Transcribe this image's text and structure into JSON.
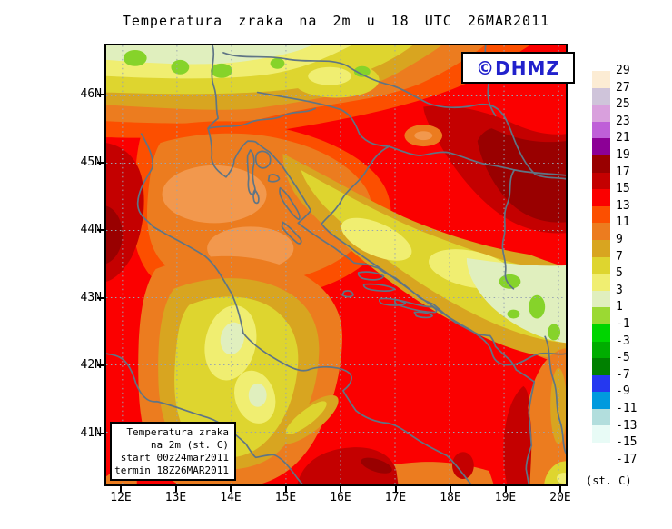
{
  "title": "Temperatura zraka na 2m u 18 UTC 26MAR2011",
  "watermark": {
    "text": "©DHMZ",
    "color": "#2121cc"
  },
  "info_box": {
    "lines": [
      "Temperatura zraka",
      "na 2m (st. C)",
      "start 00z24mar2011",
      "termin 18Z26MAR2011"
    ]
  },
  "axes": {
    "lat": [
      "46N",
      "45N",
      "44N",
      "43N",
      "42N",
      "41N"
    ],
    "lon": [
      "12E",
      "13E",
      "14E",
      "15E",
      "16E",
      "17E",
      "18E",
      "19E",
      "20E"
    ]
  },
  "legend": {
    "unit": "(st. C)",
    "labels": [
      "29",
      "27",
      "25",
      "23",
      "21",
      "19",
      "17",
      "15",
      "13",
      "11",
      "9",
      "7",
      "5",
      "3",
      "1",
      "-1",
      "-3",
      "-5",
      "-7",
      "-9",
      "-11",
      "-13",
      "-15",
      "-17"
    ],
    "colors": [
      "#fcecd4",
      "#cfc4da",
      "#d9a0dd",
      "#bf5fd8",
      "#8c0096",
      "#990000",
      "#c40000",
      "#fb0000",
      "#fc4f00",
      "#ec7c1f",
      "#d8a520",
      "#ded52f",
      "#f0ee71",
      "#e0efbe",
      "#9bd933",
      "#00d500",
      "#00ad00",
      "#008000",
      "#2538f0",
      "#009ade",
      "#b2dedd",
      "#e8fbf6",
      "#ffffff"
    ]
  }
}
